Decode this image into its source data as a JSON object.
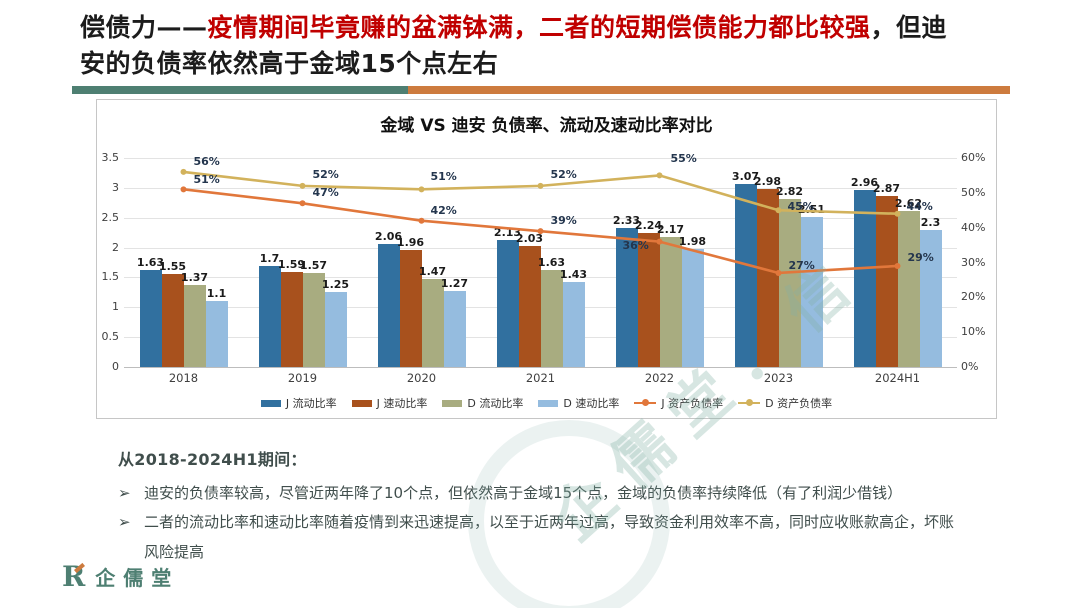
{
  "header": {
    "prefix": "偿债力——",
    "highlight": "疫情期间毕竟赚的盆满钵满，二者的短期偿债能力都比较强",
    "suffix": "，但迪安的负债率依然高于金域15个点左右",
    "highlight_color": "#c00000"
  },
  "divider": {
    "left_color": "#4e7f72",
    "right_color": "#cd7b3e"
  },
  "chart_data": {
    "type": "bar+line",
    "title": "金域 VS 迪安 负债率、流动及速动比率对比",
    "categories": [
      "2018",
      "2019",
      "2020",
      "2021",
      "2022",
      "2023",
      "2024H1"
    ],
    "bar_series": [
      {
        "name": "J 流动比率",
        "color": "#31709f",
        "values": [
          1.63,
          1.7,
          2.06,
          2.13,
          2.33,
          3.07,
          2.96
        ]
      },
      {
        "name": "J 速动比率",
        "color": "#a8511d",
        "values": [
          1.55,
          1.59,
          1.96,
          2.03,
          2.24,
          2.98,
          2.87
        ]
      },
      {
        "name": "D 流动比率",
        "color": "#a8ac80",
        "values": [
          1.37,
          1.57,
          1.47,
          1.63,
          2.17,
          2.82,
          2.62
        ]
      },
      {
        "name": "D 速动比率",
        "color": "#95bcdf",
        "values": [
          1.1,
          1.25,
          1.27,
          1.43,
          1.98,
          2.51,
          2.3
        ]
      }
    ],
    "line_series": [
      {
        "name": "J 资产负债率",
        "color": "#e1773b",
        "values_pct": [
          51,
          47,
          42,
          39,
          36,
          27,
          29
        ]
      },
      {
        "name": "D 资产负债率",
        "color": "#d2b25c",
        "values_pct": [
          56,
          52,
          51,
          52,
          55,
          45,
          44
        ]
      }
    ],
    "left_axis": {
      "min": 0,
      "max": 3.5,
      "tick_labels": [
        "3.5",
        "3",
        "2.5",
        "2",
        "1.5",
        "1",
        "0.5",
        "0"
      ]
    },
    "right_axis": {
      "min_pct": 0,
      "max_pct": 60,
      "tick_labels": [
        "60%",
        "50%",
        "40%",
        "30%",
        "20%",
        "10%",
        "0%"
      ]
    },
    "legend_position": "bottom",
    "grid": true
  },
  "notes": {
    "heading": "从2018-2024H1期间：",
    "bullet_glyph": "➢",
    "bullets": [
      "迪安的负债率较高，尽管近两年降了10个点，但依然高于金域15个点，金域的负债率持续降低（有了利润少借钱）",
      "二者的流动比率和速动比率随着疫情到来迅速提高，以至于近两年过高，导致资金利用效率不高，同时应收账款高企，坏账风险提高"
    ]
  },
  "footer": {
    "logo_mark": "R",
    "logo_text": "企儒堂"
  },
  "watermark": {
    "text": "企儒堂．信",
    "color": "#82b0a6"
  }
}
